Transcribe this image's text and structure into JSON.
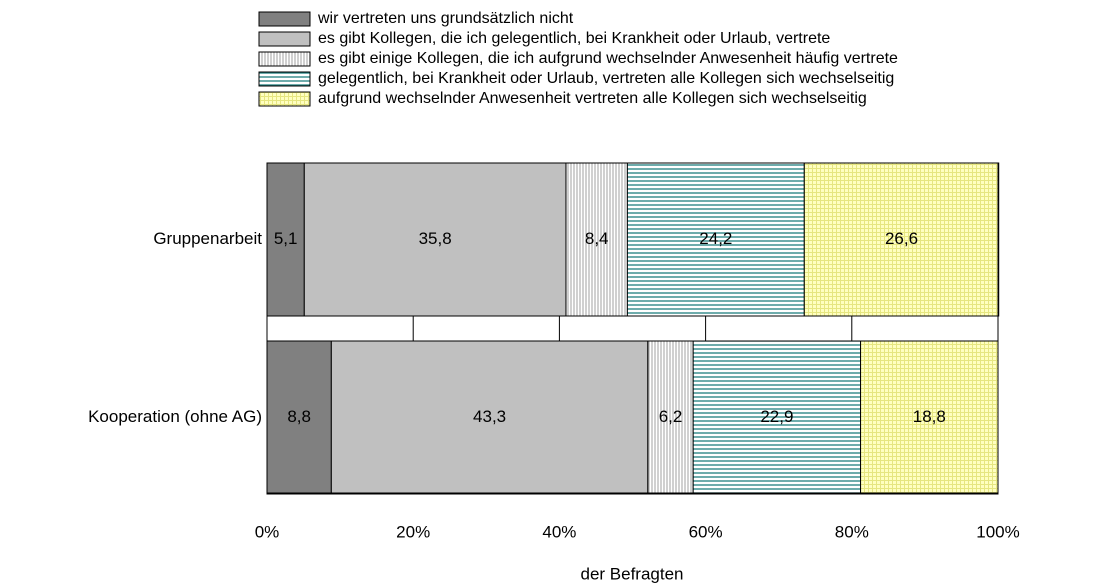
{
  "chart_data": {
    "type": "stacked-bar-horizontal",
    "x_label": "der Befragten",
    "categories": [
      "Gruppenarbeit",
      "Kooperation (ohne AG)"
    ],
    "series": [
      {
        "name": "wir vertreten uns grundsätzlich nicht",
        "color": "#808080",
        "pattern": "solid",
        "values": [
          5.1,
          8.8
        ],
        "value_labels": [
          "5,1",
          "8,8"
        ]
      },
      {
        "name": "es gibt Kollegen, die ich gelegentlich, bei Krankheit oder Urlaub, vertrete",
        "color": "#c0c0c0",
        "pattern": "solid",
        "values": [
          35.8,
          43.3
        ],
        "value_labels": [
          "35,8",
          "43,3"
        ]
      },
      {
        "name": "es gibt einige Kollegen, die ich aufgrund wechselnder Anwesenheit häufig vertrete",
        "color": "#a0a0a0",
        "pattern": "vertical-lines",
        "values": [
          8.4,
          6.2
        ],
        "value_labels": [
          "8,4",
          "6,2"
        ]
      },
      {
        "name": "gelegentlich, bei Krankheit oder Urlaub, vertreten alle Kollegen sich wechselseitig",
        "color": "#1f7f7f",
        "pattern": "horizontal-lines",
        "values": [
          24.2,
          22.9
        ],
        "value_labels": [
          "24,2",
          "22,9"
        ]
      },
      {
        "name": "aufgrund wechselnder Anwesenheit vertreten alle Kollegen sich wechselseitig",
        "color": "#e6e680",
        "pattern": "grid",
        "values": [
          26.6,
          18.8
        ],
        "value_labels": [
          "26,6",
          "18,8"
        ]
      }
    ],
    "xlim": [
      0,
      100
    ],
    "xticks": [
      {
        "value": 0,
        "label": "0%"
      },
      {
        "value": 20,
        "label": "20%"
      },
      {
        "value": 40,
        "label": "40%"
      },
      {
        "value": 60,
        "label": "60%"
      },
      {
        "value": 80,
        "label": "80%"
      },
      {
        "value": 100,
        "label": "100%"
      }
    ],
    "grid": true,
    "legend": "top"
  }
}
